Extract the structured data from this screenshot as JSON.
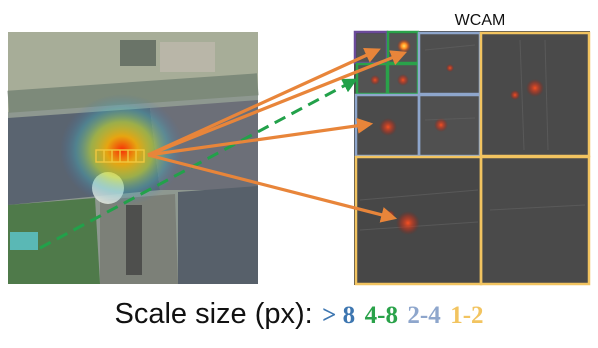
{
  "figure": {
    "title": "WCAM",
    "legend": {
      "label": "Scale size (px):",
      "scales": [
        {
          "text": "> 8",
          "color": "#3d76b0"
        },
        {
          "text": "4-8",
          "color": "#2aa24a"
        },
        {
          "text": "2-4",
          "color": "#8ea6cc"
        },
        {
          "text": "1-2",
          "color": "#f2c460"
        }
      ]
    },
    "colors": {
      "arrow_solid": "#e8853a",
      "arrow_dashed": "#22a14a",
      "frame_gt8": "#6b4a9a",
      "frame_4_8": "#2aa24a",
      "frame_2_4": "#8ea6cc",
      "frame_1_2": "#f2c460"
    }
  }
}
